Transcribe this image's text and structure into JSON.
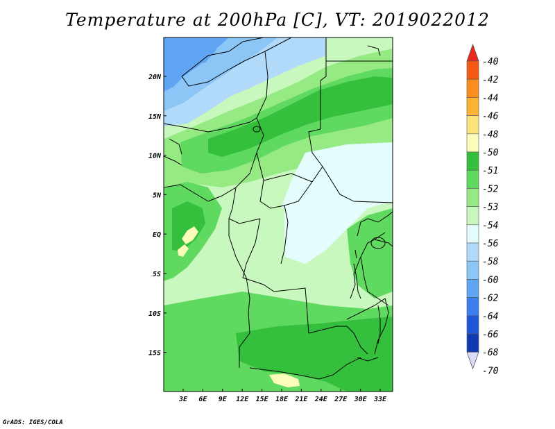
{
  "title": "Temperature at 200hPa [C], VT: 2019022012",
  "footer": "GrADS: IGES/COLA",
  "map": {
    "lon_labels": [
      "3E",
      "6E",
      "9E",
      "12E",
      "15E",
      "18E",
      "21E",
      "24E",
      "27E",
      "30E",
      "33E"
    ],
    "lat_labels": [
      "20N",
      "15N",
      "10N",
      "5N",
      "EQ",
      "5S",
      "10S",
      "15S"
    ]
  },
  "colorbar": {
    "labels": [
      "-40",
      "-42",
      "-44",
      "-46",
      "-48",
      "-50",
      "-51",
      "-52",
      "-53",
      "-54",
      "-56",
      "-58",
      "-60",
      "-62",
      "-64",
      "-66",
      "-68",
      "-70"
    ],
    "colors": [
      "#e8291c",
      "#f55a14",
      "#fb8c1e",
      "#fcb432",
      "#fde17a",
      "#fbfbba",
      "#34c03c",
      "#5fd95f",
      "#96ea84",
      "#c8f8be",
      "#e4fcfb",
      "#b1dafa",
      "#8bc6f7",
      "#5fa5f3",
      "#3c7df0",
      "#1e57d8",
      "#0e3ab4",
      "#090b75"
    ]
  },
  "colors": {
    "green_dark": "#34c03c",
    "green_mid": "#5fd95f",
    "green_light": "#96ea84",
    "green_pale": "#c8f8be",
    "cyan_pale": "#e4fcfb",
    "blue_light": "#b1dafa",
    "blue_mid": "#8bc6f7",
    "blue": "#5fa5f3",
    "yellow_pale": "#fbfbba"
  }
}
